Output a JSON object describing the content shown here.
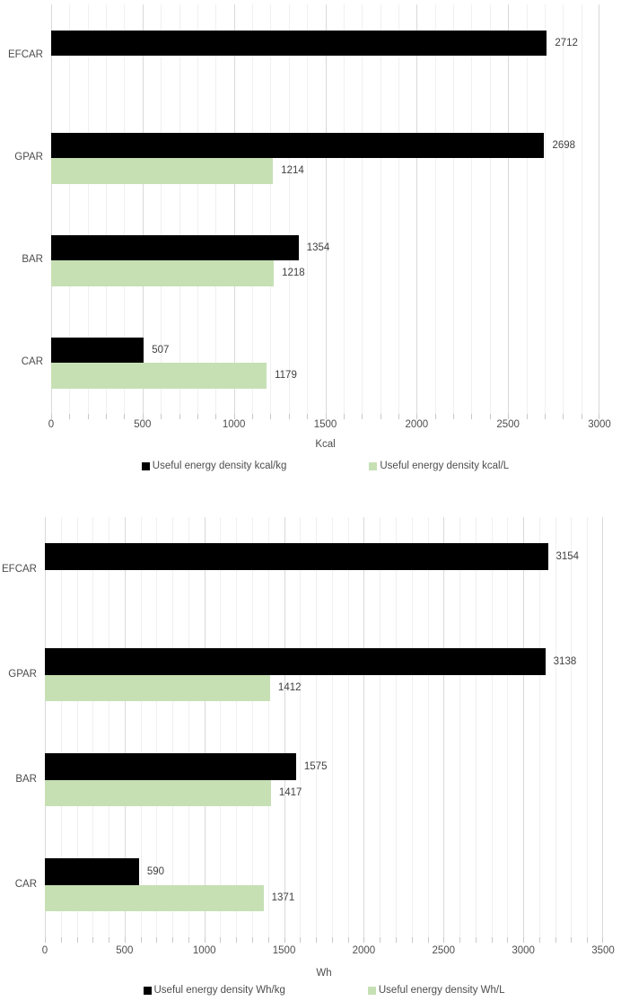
{
  "colors": {
    "background": "#ffffff",
    "series_black": "#000000",
    "series_green": "#c6e0b4",
    "grid_minor": "#f0f0f0",
    "grid_major": "#d9d9d9",
    "tick_mark": "#c8c8c8",
    "axis_text": "#4d4d4d",
    "value_text": "#404040"
  },
  "chart_data": [
    {
      "type": "bar",
      "orientation": "horizontal",
      "title": "",
      "xlabel": "Kcal",
      "ylabel": "",
      "xlim": [
        0,
        3000
      ],
      "xticks": [
        0,
        500,
        1000,
        1500,
        2000,
        2500,
        3000
      ],
      "minor_grid_step": 100,
      "grid": true,
      "legend_position": "bottom",
      "data_labels": true,
      "categories": [
        "EFCAR",
        "GPAR",
        "BAR",
        "CAR"
      ],
      "series": [
        {
          "name": "Useful energy density kcal/kg",
          "color": "#000000",
          "values": [
            2712,
            2698,
            1354,
            507
          ]
        },
        {
          "name": "Useful energy density kcal/L",
          "color": "#c6e0b4",
          "values": [
            null,
            1214,
            1218,
            1179
          ]
        }
      ]
    },
    {
      "type": "bar",
      "orientation": "horizontal",
      "title": "",
      "xlabel": "Wh",
      "ylabel": "",
      "xlim": [
        0,
        3500
      ],
      "xticks": [
        0,
        500,
        1000,
        1500,
        2000,
        2500,
        3000,
        3500
      ],
      "minor_grid_step": 100,
      "grid": true,
      "legend_position": "bottom",
      "data_labels": true,
      "categories": [
        "EFCAR",
        "GPAR",
        "BAR",
        "CAR"
      ],
      "series": [
        {
          "name": "Useful energy density Wh/kg",
          "color": "#000000",
          "values": [
            3154,
            3138,
            1575,
            590
          ]
        },
        {
          "name": "Useful energy density Wh/L",
          "color": "#c6e0b4",
          "values": [
            null,
            1412,
            1417,
            1371
          ]
        }
      ]
    }
  ]
}
